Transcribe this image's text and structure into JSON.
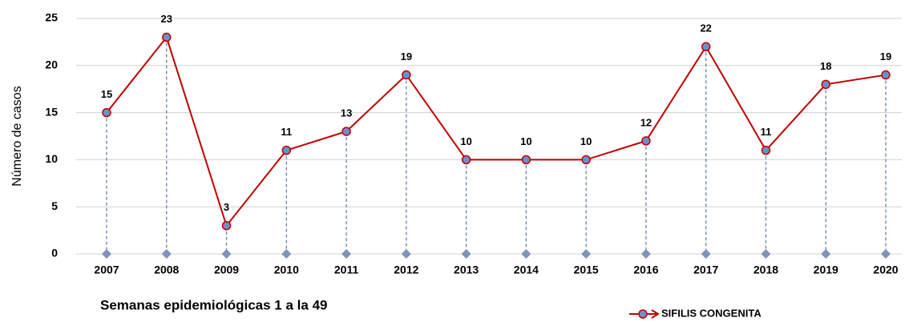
{
  "chart_data": {
    "type": "line",
    "categories": [
      "2007",
      "2008",
      "2009",
      "2010",
      "2011",
      "2012",
      "2013",
      "2014",
      "2015",
      "2016",
      "2017",
      "2018",
      "2019",
      "2020"
    ],
    "series": [
      {
        "name": "SIFILIS CONGENITA",
        "color": "#c00000",
        "marker_color": "#6f8fc8",
        "values": [
          15,
          23,
          3,
          11,
          13,
          19,
          10,
          10,
          10,
          12,
          22,
          11,
          18,
          19
        ]
      }
    ],
    "ylabel": "Número de casos",
    "xlabel": "Semanas epidemiológicas 1 a la 49",
    "ylim": [
      0,
      25
    ],
    "yticks": [
      0,
      5,
      10,
      15,
      20,
      25
    ],
    "grid": true,
    "drop_lines": true
  }
}
